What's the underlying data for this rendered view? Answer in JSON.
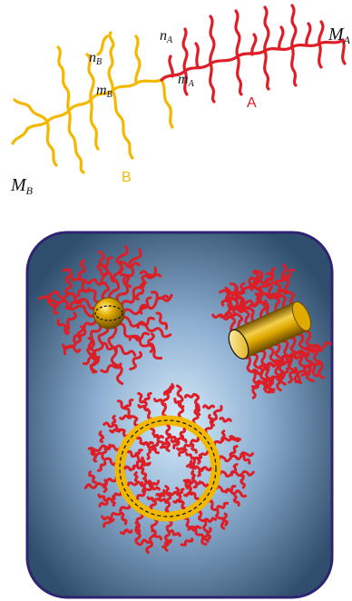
{
  "colors": {
    "block_a": "#dd1e26",
    "block_b": "#f5b800",
    "panel_border": "#2e2472",
    "panel_center": "#d6ecfa",
    "panel_edge": "#2f4d6c",
    "gold": "#e0aa00"
  },
  "top_diagram": {
    "block_a_label": "A",
    "block_b_label": "B",
    "labels": {
      "m_b_big": "M",
      "m_b_big_sub": "B",
      "n_b": "n",
      "n_b_sub": "B",
      "m_b": "m",
      "m_b_sub": "B",
      "n_a": "n",
      "n_a_sub": "A",
      "m_a": "m",
      "m_a_sub": "A",
      "m_a_big": "M",
      "m_a_big_sub": "A"
    }
  },
  "bottom_panel": {
    "structures": [
      "spherical-micelle",
      "cylindrical-micelle",
      "vesicle"
    ]
  }
}
